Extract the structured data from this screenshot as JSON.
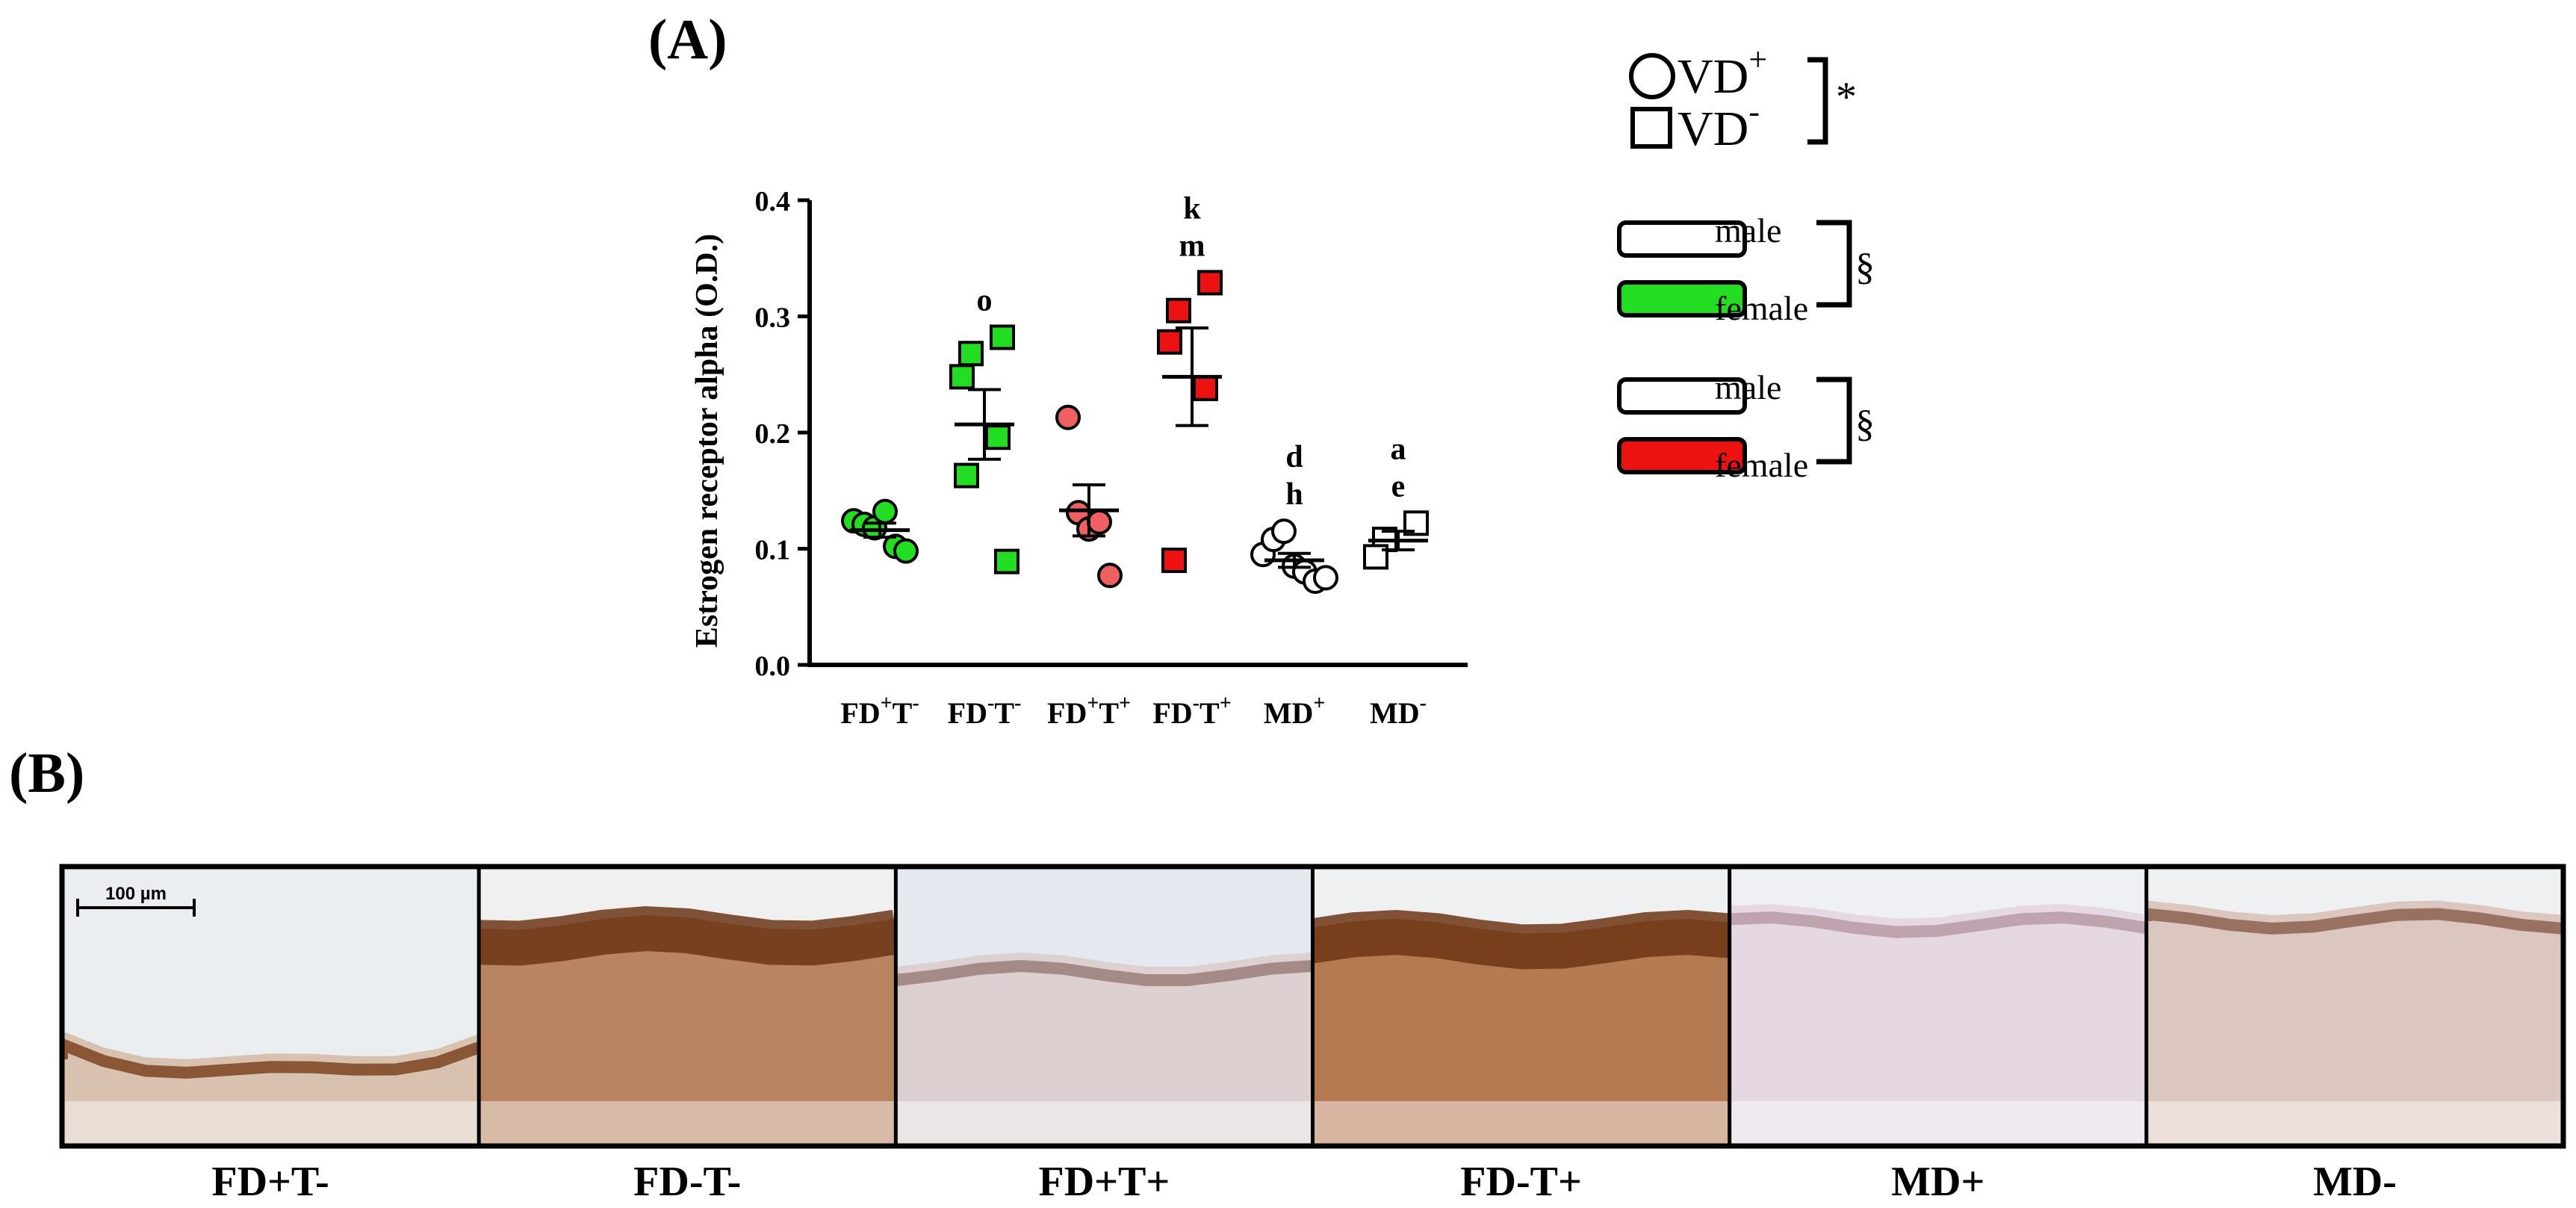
{
  "panels": {
    "a_label": "(A)",
    "b_label": "(B)"
  },
  "chart_data": {
    "type": "scatter",
    "title": "",
    "ylabel": "Estrogen receptor alpha (O.D.)",
    "xlabel": "",
    "ylim": [
      0,
      0.4
    ],
    "yticks": [
      "0.0",
      "0.1",
      "0.2",
      "0.3",
      "0.4"
    ],
    "categories": [
      {
        "base": "FD",
        "sup1": "+",
        "mid": "T",
        "sup2": "-"
      },
      {
        "base": "FD",
        "sup1": "-",
        "mid": "T",
        "sup2": "-"
      },
      {
        "base": "FD",
        "sup1": "+",
        "mid": "T",
        "sup2": "+"
      },
      {
        "base": "FD",
        "sup1": "-",
        "mid": "T",
        "sup2": "+"
      },
      {
        "base": "MD",
        "sup1": "+",
        "mid": "",
        "sup2": ""
      },
      {
        "base": "MD",
        "sup1": "-",
        "mid": "",
        "sup2": ""
      }
    ],
    "groups": [
      {
        "name": "FD+T-",
        "shape": "circle",
        "fill": "#22dd22",
        "mean": 0.116,
        "sem": 0.006,
        "points": [
          0.124,
          0.121,
          0.118,
          0.132,
          0.102,
          0.098
        ],
        "letters": []
      },
      {
        "name": "FD-T-",
        "shape": "square",
        "fill": "#22dd22",
        "mean": 0.207,
        "sem": 0.03,
        "points": [
          0.268,
          0.282,
          0.248,
          0.196,
          0.163,
          0.089
        ],
        "letters": [
          "o"
        ]
      },
      {
        "name": "FD+T+",
        "shape": "circle",
        "fill": "#f06060",
        "mean": 0.133,
        "sem": 0.022,
        "points": [
          0.213,
          0.131,
          0.117,
          0.123,
          0.077
        ],
        "letters": []
      },
      {
        "name": "FD-T+",
        "shape": "square",
        "fill": "#ee1111",
        "mean": 0.248,
        "sem": 0.042,
        "points": [
          0.305,
          0.329,
          0.278,
          0.238,
          0.09
        ],
        "letters": [
          "k",
          "m"
        ]
      },
      {
        "name": "MD+",
        "shape": "circle",
        "fill": "#ffffff",
        "mean": 0.09,
        "sem": 0.006,
        "points": [
          0.095,
          0.108,
          0.115,
          0.085,
          0.08,
          0.072,
          0.075
        ],
        "letters": [
          "d",
          "h"
        ]
      },
      {
        "name": "MD-",
        "shape": "square",
        "fill": "#ffffff",
        "mean": 0.107,
        "sem": 0.008,
        "points": [
          0.108,
          0.122,
          0.093
        ],
        "letters": [
          "a",
          "e"
        ]
      }
    ],
    "legend": {
      "shape_items": [
        {
          "shape": "circle",
          "label": "VD",
          "sup": "+"
        },
        {
          "shape": "square",
          "label": "VD",
          "sup": "-"
        }
      ],
      "shape_sig": "*",
      "sex_groups": [
        {
          "items": [
            {
              "label": "male",
              "fill": "#ffffff"
            },
            {
              "label": "female",
              "fill": "#22dd22"
            }
          ],
          "sig": "§"
        },
        {
          "items": [
            {
              "label": "male",
              "fill": "#ffffff"
            },
            {
              "label": "female",
              "fill": "#ee1111"
            }
          ],
          "sig": "§"
        }
      ]
    }
  },
  "micrographs": {
    "scale_bar": "100 µm",
    "tiles": [
      {
        "label": "FD+T-",
        "tissue": "#d9c1b0",
        "band": "#7a4420",
        "bg": "#ebeef1"
      },
      {
        "label": "FD-T-",
        "tissue": "#b98560",
        "band": "#6b3515",
        "bg": "#f0f0f0"
      },
      {
        "label": "FD+T+",
        "tissue": "#ddd0d0",
        "band": "#9b7f7a",
        "bg": "#e4e8ef"
      },
      {
        "label": "FD-T+",
        "tissue": "#b57a52",
        "band": "#6d3514",
        "bg": "#eef0f2"
      },
      {
        "label": "MD+",
        "tissue": "#e5d8e3",
        "band": "#b99aa5",
        "bg": "#eef0f4"
      },
      {
        "label": "MD-",
        "tissue": "#dcc6c0",
        "band": "#8d6150",
        "bg": "#eff0f1"
      }
    ]
  }
}
